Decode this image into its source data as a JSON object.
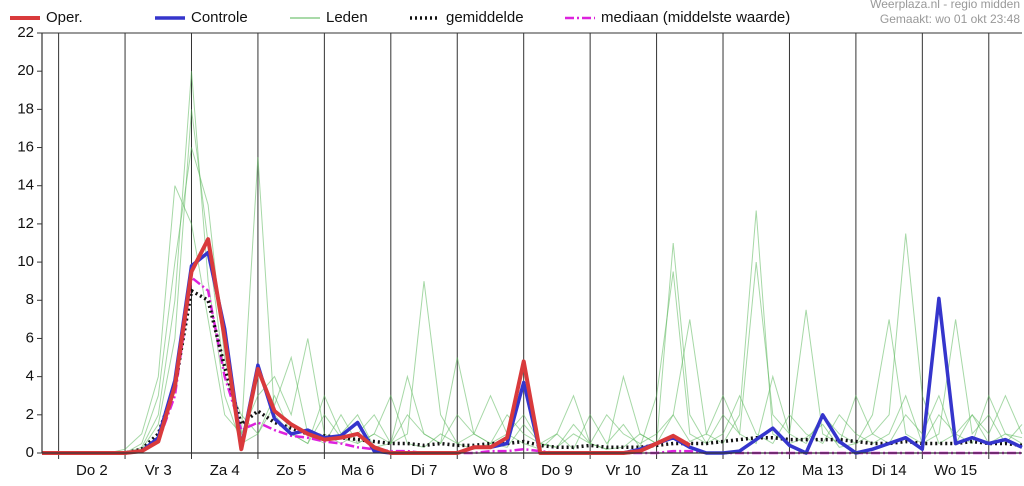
{
  "chart_data": {
    "type": "line",
    "credits": [
      "Weerplaza.nl - regio midden",
      "Gemaakt: wo 01 okt 23:48"
    ],
    "x": [
      1.75,
      2,
      2.25,
      2.5,
      2.75,
      3,
      3.25,
      3.5,
      3.75,
      4,
      4.25,
      4.5,
      4.75,
      5,
      5.25,
      5.5,
      5.75,
      6,
      6.25,
      6.5,
      6.75,
      7,
      7.25,
      7.5,
      7.75,
      8,
      8.25,
      8.5,
      8.75,
      9,
      9.25,
      9.5,
      9.75,
      10,
      10.25,
      10.5,
      10.75,
      11,
      11.25,
      11.5,
      11.75,
      12,
      12.25,
      12.5,
      12.75,
      13,
      13.25,
      13.5,
      13.75,
      14,
      14.25,
      14.5,
      14.75,
      15,
      15.25,
      15.5,
      15.75,
      16,
      16.25,
      16.5
    ],
    "xlim": [
      1.75,
      16.5
    ],
    "xticks": [
      {
        "value": 2.5,
        "label": "Do 2"
      },
      {
        "value": 3.5,
        "label": "Vr 3"
      },
      {
        "value": 4.5,
        "label": "Za 4"
      },
      {
        "value": 5.5,
        "label": "Zo 5"
      },
      {
        "value": 6.5,
        "label": "Ma 6"
      },
      {
        "value": 7.5,
        "label": "Di 7"
      },
      {
        "value": 8.5,
        "label": "Wo 8"
      },
      {
        "value": 9.5,
        "label": "Do 9"
      },
      {
        "value": 10.5,
        "label": "Vr 10"
      },
      {
        "value": 11.5,
        "label": "Za 11"
      },
      {
        "value": 12.5,
        "label": "Zo 12"
      },
      {
        "value": 13.5,
        "label": "Ma 13"
      },
      {
        "value": 14.5,
        "label": "Di 14"
      },
      {
        "value": 15.5,
        "label": "Wo 15"
      }
    ],
    "xgrid": [
      2,
      3,
      4,
      5,
      6,
      7,
      8,
      9,
      10,
      11,
      12,
      13,
      14,
      15,
      16
    ],
    "ylim": [
      0,
      22
    ],
    "yticks": [
      0,
      2,
      4,
      6,
      8,
      10,
      12,
      14,
      16,
      18,
      20,
      22
    ],
    "series": [
      {
        "name": "Oper.",
        "color": "#d93a3c",
        "style": "solid",
        "width": 4,
        "values": [
          0,
          0,
          0,
          0,
          0,
          0,
          0.1,
          0.6,
          3.5,
          9.5,
          11.2,
          6.0,
          0.2,
          4.4,
          2.2,
          1.5,
          1.0,
          0.7,
          0.8,
          1.0,
          0.3,
          0,
          0,
          0,
          0,
          0,
          0.3,
          0.3,
          0.8,
          4.8,
          0,
          0,
          0,
          0,
          0,
          0,
          0.1,
          0.5,
          0.9,
          0.4,
          null,
          null,
          null,
          null,
          null,
          null,
          null,
          null,
          null,
          null,
          null,
          null,
          null,
          null,
          null,
          null,
          null,
          null,
          null,
          null
        ]
      },
      {
        "name": "Controle",
        "color": "#3535cc",
        "style": "solid",
        "width": 3.5,
        "values": [
          0,
          0,
          0,
          0,
          0,
          0,
          0.1,
          0.8,
          3.8,
          9.8,
          10.5,
          6.5,
          0.3,
          4.6,
          1.8,
          1.0,
          1.2,
          0.8,
          0.9,
          1.6,
          0.1,
          0,
          0,
          0,
          0,
          0,
          0.3,
          0.3,
          0.5,
          3.7,
          0,
          0,
          0,
          0,
          0,
          0,
          0.2,
          0.5,
          0.8,
          0.3,
          0,
          0,
          0.1,
          0.7,
          1.3,
          0.4,
          0,
          2.0,
          0.6,
          0,
          0.2,
          0.5,
          0.8,
          0.2,
          8.1,
          0.5,
          0.8,
          0.5,
          0.7,
          0.3
        ]
      },
      {
        "name": "Leden",
        "color": "#5cb85c",
        "style": "thin",
        "width": 1,
        "members": [
          {
            "values": [
              0,
              0,
              0,
              0,
              0,
              0,
              0.3,
              2,
              8,
              20,
              9,
              3,
              0.5,
              1,
              3,
              1,
              0.5,
              2,
              0.8,
              0.5,
              1,
              3,
              0.5,
              0.3,
              1,
              0.5,
              0.2,
              0.5,
              1,
              2,
              0.5,
              0.3,
              1.5,
              0.5,
              0.2,
              0.3,
              1,
              0.5,
              2,
              0.6,
              1,
              0.5,
              2,
              12.7,
              1,
              0.5,
              0.8,
              1.5,
              0.3,
              0.5,
              1,
              2,
              11.5,
              3,
              0.5,
              1,
              2,
              0.5,
              1,
              0.8
            ]
          },
          {
            "values": [
              0,
              0,
              0,
              0,
              0,
              0.2,
              1,
              4,
              14,
              12,
              7,
              2,
              1,
              15.5,
              2,
              1,
              0.5,
              3,
              1,
              2,
              0.3,
              0.5,
              4,
              1,
              0.5,
              2,
              1,
              0.5,
              0.3,
              1.5,
              0.5,
              1,
              0.2,
              2,
              0.5,
              1.5,
              0.3,
              3,
              9.5,
              1,
              0.5,
              2,
              1,
              0.5,
              4,
              1,
              7.5,
              1,
              0.5,
              3,
              1,
              0.5,
              2,
              1,
              3,
              0.5,
              2,
              1,
              3,
              1
            ]
          },
          {
            "values": [
              0,
              0,
              0,
              0,
              0,
              0,
              0.5,
              3,
              10,
              16,
              13,
              5,
              1,
              3,
              4,
              2,
              6,
              1,
              0.5,
              1,
              2,
              0.5,
              1,
              9,
              2,
              0.5,
              1,
              3,
              1,
              0.5,
              0.2,
              1,
              3,
              0.5,
              2,
              1,
              0.5,
              1,
              2,
              7,
              1,
              3,
              1,
              10,
              2,
              1,
              0.5,
              2,
              1,
              0.5,
              2,
              7,
              1,
              0.5,
              2,
              1,
              0.5,
              3,
              1,
              0.5
            ]
          },
          {
            "values": [
              0,
              0,
              0,
              0,
              0,
              0,
              0.2,
              1.5,
              6,
              18,
              11,
              4,
              2,
              1,
              2.5,
              5,
              1,
              0.5,
              2,
              0.5,
              1,
              0.5,
              2,
              1,
              0.5,
              5,
              1,
              0.5,
              2,
              1,
              0.5,
              0.3,
              1,
              0.5,
              0.2,
              4,
              1,
              0.5,
              11,
              2,
              0.5,
              1,
              3,
              1,
              0.5,
              2,
              1,
              0.5,
              2,
              1,
              0.5,
              1,
              3,
              0.5,
              1,
              7,
              1,
              2,
              0.5,
              1.5
            ]
          }
        ]
      },
      {
        "name": "gemiddelde",
        "color": "#111111",
        "style": "dotted",
        "width": 3.5,
        "values": [
          0,
          0,
          0,
          0,
          0,
          0,
          0.2,
          1.0,
          3.5,
          8.5,
          8.0,
          4.5,
          1.5,
          2.2,
          1.6,
          1.3,
          1.0,
          0.9,
          0.8,
          0.7,
          0.6,
          0.5,
          0.5,
          0.4,
          0.5,
          0.4,
          0.4,
          0.5,
          0.5,
          0.6,
          0.4,
          0.3,
          0.3,
          0.4,
          0.3,
          0.3,
          0.3,
          0.4,
          0.5,
          0.5,
          0.5,
          0.6,
          0.7,
          0.8,
          0.8,
          0.7,
          0.7,
          0.7,
          0.7,
          0.6,
          0.5,
          0.5,
          0.6,
          0.5,
          0.5,
          0.5,
          0.6,
          0.5,
          0.5,
          0.4
        ]
      },
      {
        "name": "mediaan (middelste waarde)",
        "color": "#dd22dd",
        "style": "dashdot",
        "width": 2.5,
        "values": [
          0,
          0,
          0,
          0,
          0,
          0,
          0.1,
          0.6,
          3.0,
          9.2,
          8.5,
          4.0,
          1.2,
          1.6,
          1.2,
          0.9,
          0.8,
          0.6,
          0.5,
          0.3,
          0.2,
          0.1,
          0.1,
          0,
          0,
          0,
          0,
          0.1,
          0.1,
          0.2,
          0.1,
          0,
          0,
          0,
          0,
          0,
          0,
          0,
          0.1,
          0.1,
          0,
          0,
          0,
          0,
          0,
          0,
          0,
          0,
          0,
          0,
          0,
          0,
          0,
          0,
          0,
          0,
          0,
          0,
          0,
          0
        ]
      }
    ]
  }
}
